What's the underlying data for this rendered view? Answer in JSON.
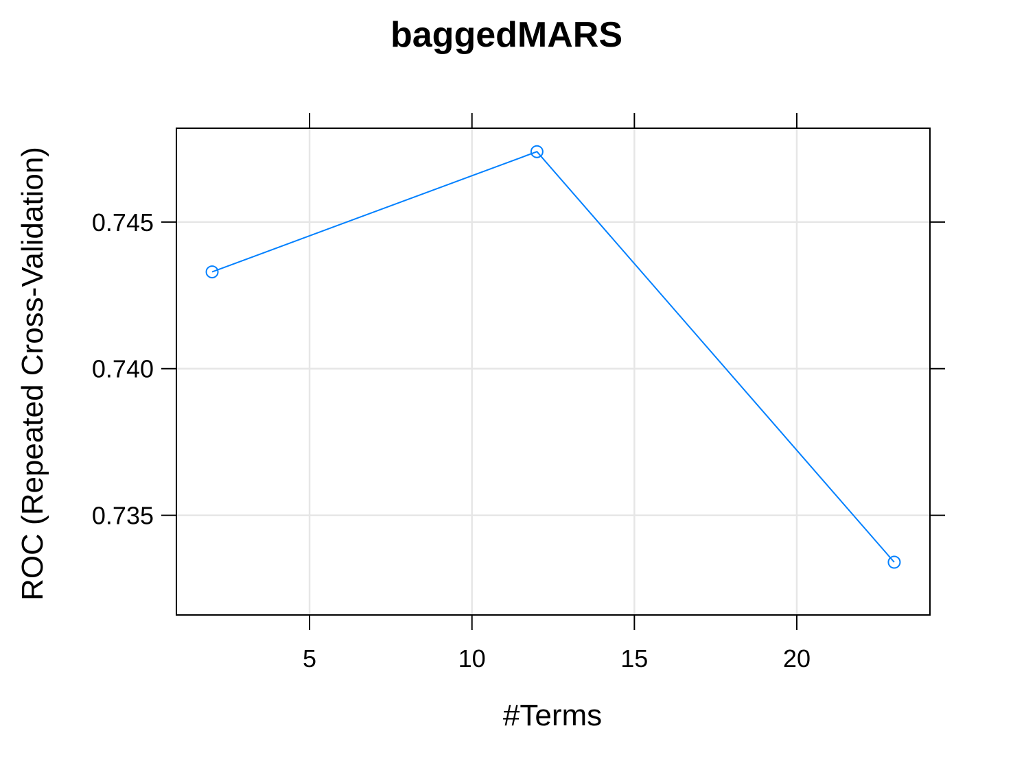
{
  "chart_data": {
    "type": "line",
    "title": "baggedMARS",
    "xlabel": "#Terms",
    "ylabel": "ROC (Repeated Cross-Validation)",
    "x": [
      2,
      12,
      23
    ],
    "series": [
      {
        "values": [
          0.7433,
          0.7474,
          0.7334
        ],
        "color": "#0080ff"
      }
    ],
    "xlim": [
      0.9,
      24.1
    ],
    "ylim": [
      0.7316,
      0.7482
    ],
    "xticks": [
      5,
      10,
      15,
      20
    ],
    "yticks": [
      0.735,
      0.74,
      0.745
    ],
    "xtick_labels": [
      "5",
      "10",
      "15",
      "20"
    ],
    "ytick_labels": [
      "0.735",
      "0.740",
      "0.745"
    ],
    "marker": "open-circle",
    "grid": true
  }
}
